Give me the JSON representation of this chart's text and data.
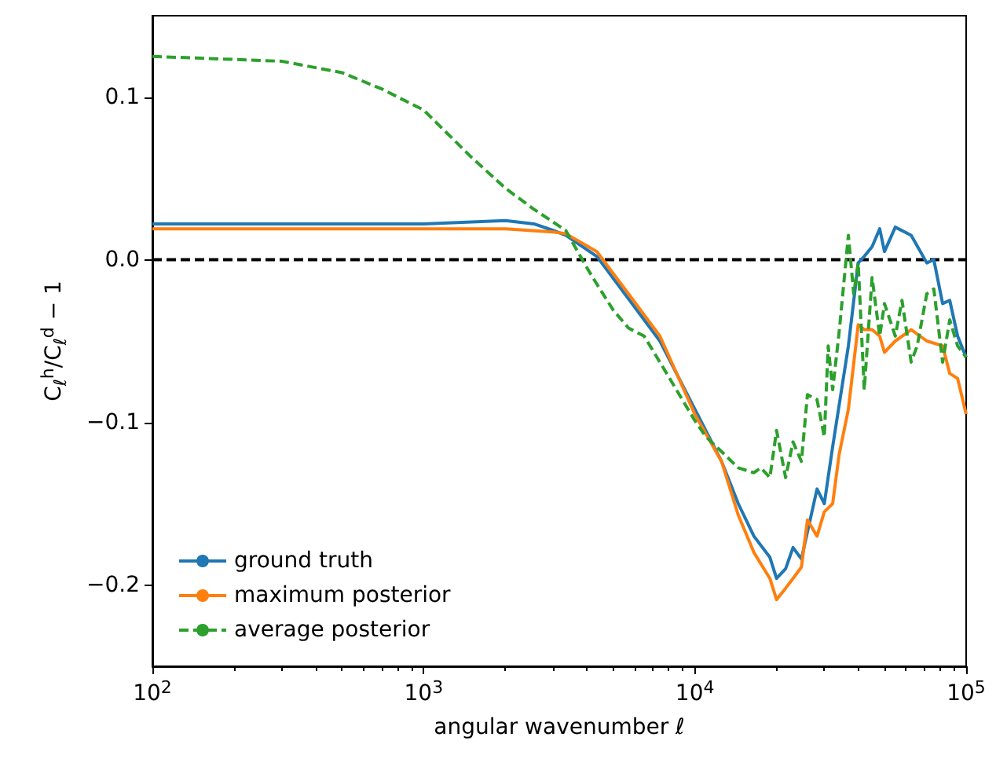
{
  "chart_data": {
    "type": "line",
    "xlabel": "angular wavenumber ℓ",
    "ylabel": "C$_{ℓ}$$^{h}$/C$_{ℓ}$$^{d}$ − 1",
    "log": "x",
    "xlim": [
      100,
      100000
    ],
    "ylim": [
      -0.25,
      0.15
    ],
    "xticks": [
      {
        "value": 100,
        "label": "10$^{2}$"
      },
      {
        "value": 1000,
        "label": "10$^{3}$"
      },
      {
        "value": 10000,
        "label": "10$^{4}$"
      },
      {
        "value": 100000,
        "label": "10$^{5}$"
      }
    ],
    "yticks": [
      {
        "value": -0.2,
        "label": "−0.2"
      },
      {
        "value": -0.1,
        "label": "−0.1"
      },
      {
        "value": 0,
        "label": "0.0"
      },
      {
        "value": 0.1,
        "label": "0.1"
      }
    ],
    "grid": false,
    "legend": "bottom left",
    "marker": "none",
    "ref_lines": [
      {
        "axis": "y",
        "value": 0,
        "color": "#000000",
        "line_style": "dashed"
      }
    ],
    "series": [
      {
        "name": "ground truth",
        "color": "#1f77b4",
        "line_style": "solid",
        "x": [
          100,
          400,
          1000,
          2000,
          2550,
          3000,
          3340,
          4350,
          5690,
          7430,
          10000,
          12540,
          14450,
          16500,
          18900,
          20000,
          21600,
          23000,
          24700,
          28200,
          30000,
          32200,
          36800,
          40000,
          42100,
          45000,
          48000,
          50000,
          54800,
          62700,
          71600,
          76000,
          81900,
          87000,
          93000,
          100000
        ],
        "values": [
          0.022,
          0.022,
          0.022,
          0.024,
          0.022,
          0.018,
          0.015,
          0.002,
          -0.024,
          -0.05,
          -0.092,
          -0.124,
          -0.15,
          -0.17,
          -0.183,
          -0.196,
          -0.19,
          -0.177,
          -0.184,
          -0.141,
          -0.15,
          -0.115,
          -0.053,
          -0.002,
          0.002,
          0.008,
          0.019,
          0.005,
          0.02,
          0.015,
          -0.002,
          0,
          -0.027,
          -0.025,
          -0.047,
          -0.06
        ]
      },
      {
        "name": "maximum posterior",
        "color": "#ff7f0e",
        "line_style": "solid",
        "x": [
          100,
          400,
          1000,
          2000,
          3000,
          3340,
          4350,
          5690,
          7430,
          10000,
          12540,
          14450,
          16500,
          18900,
          20000,
          21600,
          23000,
          24700,
          26000,
          28200,
          30000,
          32200,
          34000,
          36800,
          40000,
          42100,
          45000,
          48000,
          50000,
          54800,
          62700,
          71600,
          81900,
          87000,
          93000,
          100000
        ],
        "values": [
          0.019,
          0.019,
          0.019,
          0.019,
          0.017,
          0.016,
          0.005,
          -0.021,
          -0.047,
          -0.095,
          -0.124,
          -0.157,
          -0.18,
          -0.196,
          -0.209,
          -0.202,
          -0.196,
          -0.189,
          -0.16,
          -0.17,
          -0.155,
          -0.15,
          -0.12,
          -0.092,
          -0.04,
          -0.043,
          -0.043,
          -0.047,
          -0.057,
          -0.05,
          -0.043,
          -0.05,
          -0.053,
          -0.07,
          -0.073,
          -0.095
        ]
      },
      {
        "name": "average posterior",
        "color": "#2ca02c",
        "line_style": "dashed",
        "x": [
          100,
          300,
          500,
          700,
          1000,
          1500,
          2000,
          2550,
          3340,
          4000,
          4350,
          5000,
          5690,
          6500,
          7430,
          10000,
          11000,
          12540,
          14450,
          16500,
          17500,
          18900,
          20000,
          21600,
          23000,
          24700,
          26000,
          28200,
          30000,
          31000,
          32200,
          34000,
          36800,
          38500,
          40000,
          42100,
          45000,
          48000,
          50000,
          54800,
          58000,
          62700,
          66000,
          71600,
          76000,
          81900,
          87000,
          93000,
          100000
        ],
        "values": [
          0.125,
          0.122,
          0.115,
          0.105,
          0.092,
          0.063,
          0.044,
          0.031,
          0.018,
          -0.005,
          -0.015,
          -0.031,
          -0.042,
          -0.047,
          -0.063,
          -0.099,
          -0.109,
          -0.118,
          -0.128,
          -0.131,
          -0.128,
          -0.134,
          -0.105,
          -0.134,
          -0.112,
          -0.124,
          -0.083,
          -0.086,
          -0.109,
          -0.053,
          -0.08,
          -0.045,
          0.015,
          -0.021,
          -0.002,
          -0.08,
          -0.011,
          -0.047,
          -0.027,
          -0.047,
          -0.025,
          -0.063,
          -0.053,
          -0.021,
          -0.018,
          -0.063,
          -0.037,
          -0.053,
          -0.06
        ]
      }
    ]
  }
}
